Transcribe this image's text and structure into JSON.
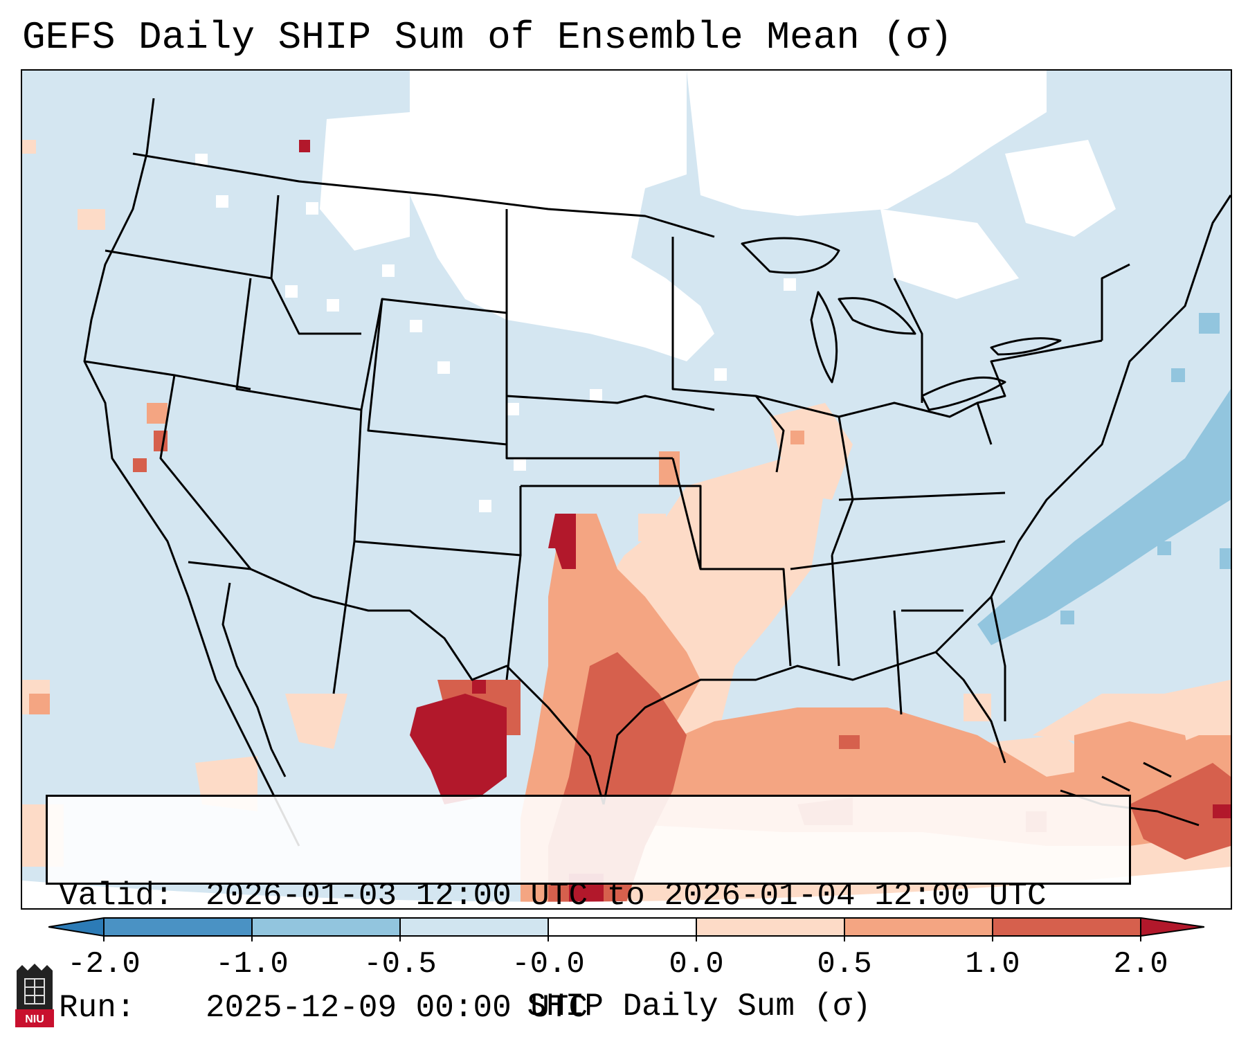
{
  "title": "GEFS Daily SHIP Sum of Ensemble Mean (σ)",
  "info": {
    "valid_label": "Valid:",
    "valid_value": "2026-01-03 12:00 UTC to 2026-01-04 12:00 UTC",
    "run_label": "Run:",
    "run_value": "2025-12-09 00:00 UTC"
  },
  "colorbar": {
    "label": "SHIP Daily Sum (σ)",
    "ticks": [
      "-2.0",
      "-1.0",
      "-0.5",
      "-0.0",
      "0.0",
      "0.5",
      "1.0",
      "2.0"
    ],
    "bins": [
      {
        "range": "< -2.0",
        "color": "#2c7bb6"
      },
      {
        "range": "-2.0 to -1.0",
        "color": "#4a92c4"
      },
      {
        "range": "-1.0 to -0.5",
        "color": "#92c5de"
      },
      {
        "range": "-0.5 to 0.0",
        "color": "#d1e5f0"
      },
      {
        "range": "0.0",
        "color": "#ffffff"
      },
      {
        "range": "0.0 to 0.5",
        "color": "#fddbc7"
      },
      {
        "range": "0.5 to 1.0",
        "color": "#f4a582"
      },
      {
        "range": "1.0 to 2.0",
        "color": "#d6604d"
      },
      {
        "range": "> 2.0",
        "color": "#b2182b"
      }
    ]
  },
  "logo": {
    "text": "NIU",
    "icon": "niu-logo-icon"
  },
  "colors": {
    "background_ocean": "#d4e6f1",
    "zero_white": "#ffffff",
    "light_red": "#fddbc7",
    "medium_red": "#f4a582",
    "strong_red": "#d6604d",
    "extreme_red": "#b2182b",
    "light_blue": "#92c5de"
  }
}
